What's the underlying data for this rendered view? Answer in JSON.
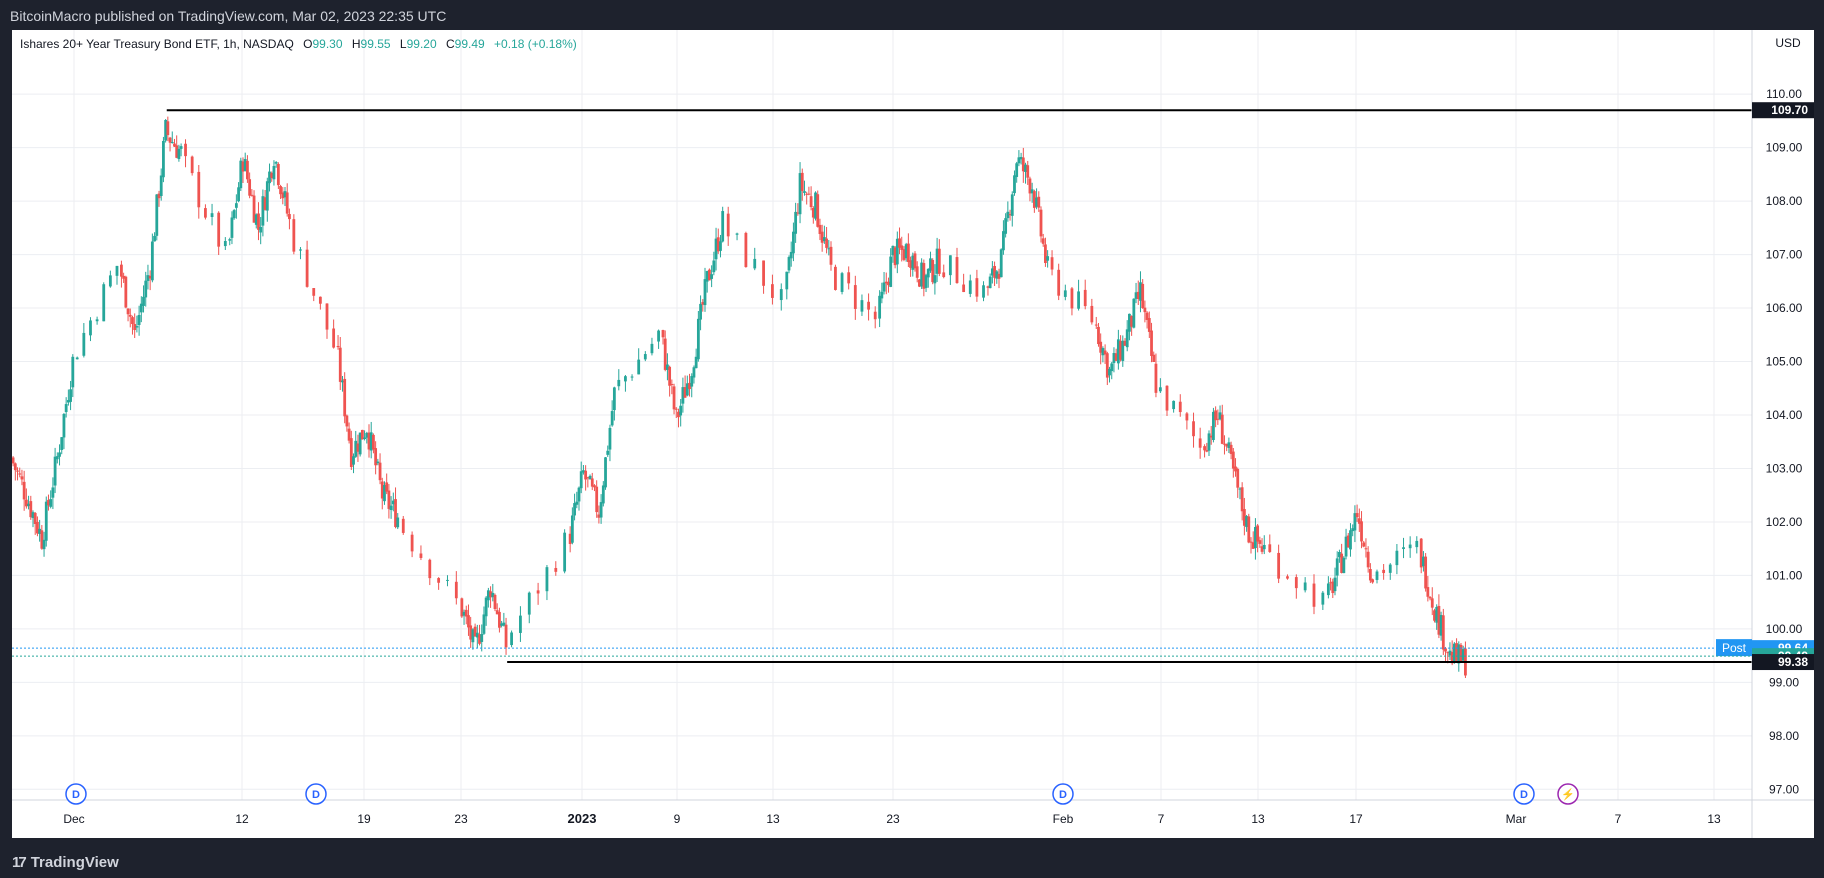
{
  "header": {
    "published_text": "BitcoinMacro published on TradingView.com, Mar 02, 2023 22:35 UTC"
  },
  "footer": {
    "brand_mark": "17",
    "brand_name": "TradingView"
  },
  "legend": {
    "symbol": "Ishares 20+ Year Treasury Bond ETF, 1h, NASDAQ",
    "open_label": "O",
    "open_value": "99.30",
    "high_label": "H",
    "high_value": "99.55",
    "low_label": "L",
    "low_value": "99.20",
    "close_label": "C",
    "close_value": "99.49",
    "change": "+0.18 (+0.18%)"
  },
  "colors": {
    "up": "#26a69a",
    "down": "#ef5350",
    "grid": "#eceef2",
    "axis_text": "#131722",
    "post_badge": "#2196f3",
    "price_badge": "#26a69a",
    "level_badge": "#131722",
    "marker_d": "#2962ff",
    "marker_event": "#9c27b0"
  },
  "chart_data": {
    "type": "candlestick",
    "currency_label": "USD",
    "ylim": [
      96.8,
      111.2
    ],
    "y_ticks": [
      "97.00",
      "98.00",
      "99.00",
      "100.00",
      "101.00",
      "102.00",
      "103.00",
      "104.00",
      "105.00",
      "106.00",
      "107.00",
      "108.00",
      "109.00",
      "110.00"
    ],
    "x_ticks": [
      {
        "label": "Dec",
        "bold": false
      },
      {
        "label": "12",
        "bold": false
      },
      {
        "label": "19",
        "bold": false
      },
      {
        "label": "23",
        "bold": false
      },
      {
        "label": "2023",
        "bold": true
      },
      {
        "label": "9",
        "bold": false
      },
      {
        "label": "13",
        "bold": false
      },
      {
        "label": "23",
        "bold": false
      },
      {
        "label": "Feb",
        "bold": false
      },
      {
        "label": "7",
        "bold": false
      },
      {
        "label": "13",
        "bold": false
      },
      {
        "label": "17",
        "bold": false
      },
      {
        "label": "Mar",
        "bold": false
      },
      {
        "label": "7",
        "bold": false
      },
      {
        "label": "13",
        "bold": false
      }
    ],
    "horizontal_levels": [
      {
        "price": 109.7,
        "label": "109.70",
        "from_date": "Dec 8"
      },
      {
        "price": 99.38,
        "label": "99.38",
        "from_date": "Dec 30"
      }
    ],
    "price_lines": [
      {
        "name": "Post",
        "price": 99.64,
        "label": "99.64"
      },
      {
        "name": "Last",
        "price": 99.49,
        "label": "99.49"
      }
    ],
    "markers": [
      {
        "label": "D",
        "near": "Dec"
      },
      {
        "label": "D",
        "near": "Dec 16"
      },
      {
        "label": "D",
        "near": "Feb"
      },
      {
        "label": "D",
        "near": "Mar"
      },
      {
        "label": "⚡",
        "near": "Mar 3"
      }
    ],
    "price_path": [
      {
        "date": "Nov 28",
        "price": 103.2
      },
      {
        "date": "Nov 29",
        "price": 102.5
      },
      {
        "date": "Nov 30",
        "price": 101.7
      },
      {
        "date": "Dec 1",
        "price": 103.2
      },
      {
        "date": "Dec 2",
        "price": 105.0
      },
      {
        "date": "Dec 5",
        "price": 106.8
      },
      {
        "date": "Dec 6",
        "price": 105.5
      },
      {
        "date": "Dec 7",
        "price": 106.8
      },
      {
        "date": "Dec 8",
        "price": 109.3
      },
      {
        "date": "Dec 9",
        "price": 108.9
      },
      {
        "date": "Dec 12",
        "price": 107.0
      },
      {
        "date": "Dec 13",
        "price": 108.8
      },
      {
        "date": "Dec 14",
        "price": 107.5
      },
      {
        "date": "Dec 15",
        "price": 108.9
      },
      {
        "date": "Dec 16",
        "price": 107.6
      },
      {
        "date": "Dec 19",
        "price": 105.3
      },
      {
        "date": "Dec 20",
        "price": 103.3
      },
      {
        "date": "Dec 21",
        "price": 103.8
      },
      {
        "date": "Dec 22",
        "price": 102.5
      },
      {
        "date": "Dec 23",
        "price": 102.1
      },
      {
        "date": "Dec 27",
        "price": 100.5
      },
      {
        "date": "Dec 28",
        "price": 99.6
      },
      {
        "date": "Dec 29",
        "price": 100.8
      },
      {
        "date": "Dec 30",
        "price": 99.7
      },
      {
        "date": "Jan 3",
        "price": 101.6
      },
      {
        "date": "Jan 4",
        "price": 102.9
      },
      {
        "date": "Jan 5",
        "price": 102.2
      },
      {
        "date": "Jan 6",
        "price": 104.4
      },
      {
        "date": "Jan 9",
        "price": 105.5
      },
      {
        "date": "Jan 10",
        "price": 103.9
      },
      {
        "date": "Jan 11",
        "price": 104.9
      },
      {
        "date": "Jan 12",
        "price": 106.5
      },
      {
        "date": "Jan 13",
        "price": 107.6
      },
      {
        "date": "Jan 17",
        "price": 106.1
      },
      {
        "date": "Jan 18",
        "price": 108.3
      },
      {
        "date": "Jan 19",
        "price": 107.9
      },
      {
        "date": "Jan 20",
        "price": 106.7
      },
      {
        "date": "Jan 23",
        "price": 105.8
      },
      {
        "date": "Jan 24",
        "price": 107.0
      },
      {
        "date": "Jan 25",
        "price": 107.1
      },
      {
        "date": "Jan 26",
        "price": 106.5
      },
      {
        "date": "Jan 27",
        "price": 106.9
      },
      {
        "date": "Jan 30",
        "price": 106.3
      },
      {
        "date": "Jan 31",
        "price": 106.9
      },
      {
        "date": "Feb 1",
        "price": 108.8
      },
      {
        "date": "Feb 2",
        "price": 108.3
      },
      {
        "date": "Feb 3",
        "price": 106.7
      },
      {
        "date": "Feb 6",
        "price": 105.8
      },
      {
        "date": "Feb 7",
        "price": 104.8
      },
      {
        "date": "Feb 8",
        "price": 105.4
      },
      {
        "date": "Feb 9",
        "price": 106.3
      },
      {
        "date": "Feb 10",
        "price": 104.6
      },
      {
        "date": "Feb 13",
        "price": 103.4
      },
      {
        "date": "Feb 14",
        "price": 104.0
      },
      {
        "date": "Feb 15",
        "price": 102.9
      },
      {
        "date": "Feb 16",
        "price": 101.8
      },
      {
        "date": "Feb 17",
        "price": 101.5
      },
      {
        "date": "Feb 21",
        "price": 100.5
      },
      {
        "date": "Feb 22",
        "price": 101.3
      },
      {
        "date": "Feb 23",
        "price": 102.2
      },
      {
        "date": "Feb 24",
        "price": 101.0
      },
      {
        "date": "Feb 27",
        "price": 101.5
      },
      {
        "date": "Feb 28",
        "price": 100.4
      },
      {
        "date": "Mar 1",
        "price": 99.5
      },
      {
        "date": "Mar 2",
        "price": 99.4
      }
    ]
  }
}
